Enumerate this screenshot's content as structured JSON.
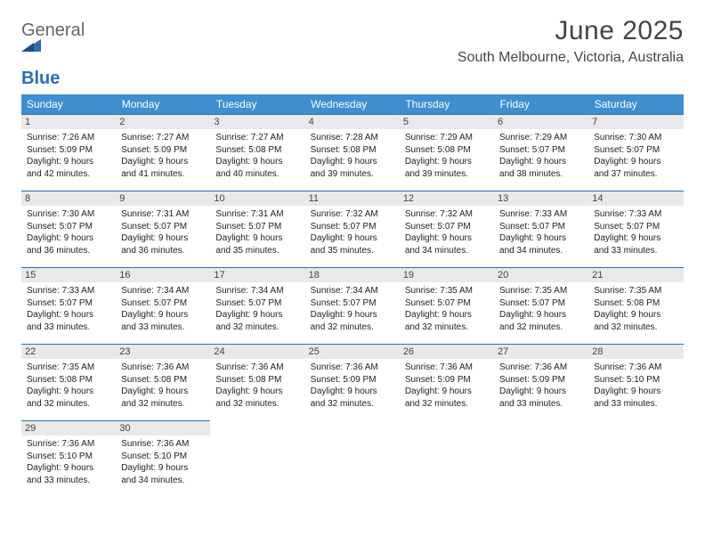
{
  "logo": {
    "textGray": "General",
    "textBlue": "Blue"
  },
  "title": "June 2025",
  "location": "South Melbourne, Victoria, Australia",
  "columns": [
    "Sunday",
    "Monday",
    "Tuesday",
    "Wednesday",
    "Thursday",
    "Friday",
    "Saturday"
  ],
  "colors": {
    "headerBg": "#3e8ed0",
    "headerText": "#ffffff",
    "ruleColor": "#2a6fb5",
    "dayBg": "#e9e9e9",
    "logoBlue": "#2a6fb5"
  },
  "weeks": [
    [
      {
        "day": "1",
        "sunrise": "7:26 AM",
        "sunset": "5:09 PM",
        "daylight": "9 hours and 42 minutes."
      },
      {
        "day": "2",
        "sunrise": "7:27 AM",
        "sunset": "5:09 PM",
        "daylight": "9 hours and 41 minutes."
      },
      {
        "day": "3",
        "sunrise": "7:27 AM",
        "sunset": "5:08 PM",
        "daylight": "9 hours and 40 minutes."
      },
      {
        "day": "4",
        "sunrise": "7:28 AM",
        "sunset": "5:08 PM",
        "daylight": "9 hours and 39 minutes."
      },
      {
        "day": "5",
        "sunrise": "7:29 AM",
        "sunset": "5:08 PM",
        "daylight": "9 hours and 39 minutes."
      },
      {
        "day": "6",
        "sunrise": "7:29 AM",
        "sunset": "5:07 PM",
        "daylight": "9 hours and 38 minutes."
      },
      {
        "day": "7",
        "sunrise": "7:30 AM",
        "sunset": "5:07 PM",
        "daylight": "9 hours and 37 minutes."
      }
    ],
    [
      {
        "day": "8",
        "sunrise": "7:30 AM",
        "sunset": "5:07 PM",
        "daylight": "9 hours and 36 minutes."
      },
      {
        "day": "9",
        "sunrise": "7:31 AM",
        "sunset": "5:07 PM",
        "daylight": "9 hours and 36 minutes."
      },
      {
        "day": "10",
        "sunrise": "7:31 AM",
        "sunset": "5:07 PM",
        "daylight": "9 hours and 35 minutes."
      },
      {
        "day": "11",
        "sunrise": "7:32 AM",
        "sunset": "5:07 PM",
        "daylight": "9 hours and 35 minutes."
      },
      {
        "day": "12",
        "sunrise": "7:32 AM",
        "sunset": "5:07 PM",
        "daylight": "9 hours and 34 minutes."
      },
      {
        "day": "13",
        "sunrise": "7:33 AM",
        "sunset": "5:07 PM",
        "daylight": "9 hours and 34 minutes."
      },
      {
        "day": "14",
        "sunrise": "7:33 AM",
        "sunset": "5:07 PM",
        "daylight": "9 hours and 33 minutes."
      }
    ],
    [
      {
        "day": "15",
        "sunrise": "7:33 AM",
        "sunset": "5:07 PM",
        "daylight": "9 hours and 33 minutes."
      },
      {
        "day": "16",
        "sunrise": "7:34 AM",
        "sunset": "5:07 PM",
        "daylight": "9 hours and 33 minutes."
      },
      {
        "day": "17",
        "sunrise": "7:34 AM",
        "sunset": "5:07 PM",
        "daylight": "9 hours and 32 minutes."
      },
      {
        "day": "18",
        "sunrise": "7:34 AM",
        "sunset": "5:07 PM",
        "daylight": "9 hours and 32 minutes."
      },
      {
        "day": "19",
        "sunrise": "7:35 AM",
        "sunset": "5:07 PM",
        "daylight": "9 hours and 32 minutes."
      },
      {
        "day": "20",
        "sunrise": "7:35 AM",
        "sunset": "5:07 PM",
        "daylight": "9 hours and 32 minutes."
      },
      {
        "day": "21",
        "sunrise": "7:35 AM",
        "sunset": "5:08 PM",
        "daylight": "9 hours and 32 minutes."
      }
    ],
    [
      {
        "day": "22",
        "sunrise": "7:35 AM",
        "sunset": "5:08 PM",
        "daylight": "9 hours and 32 minutes."
      },
      {
        "day": "23",
        "sunrise": "7:36 AM",
        "sunset": "5:08 PM",
        "daylight": "9 hours and 32 minutes."
      },
      {
        "day": "24",
        "sunrise": "7:36 AM",
        "sunset": "5:08 PM",
        "daylight": "9 hours and 32 minutes."
      },
      {
        "day": "25",
        "sunrise": "7:36 AM",
        "sunset": "5:09 PM",
        "daylight": "9 hours and 32 minutes."
      },
      {
        "day": "26",
        "sunrise": "7:36 AM",
        "sunset": "5:09 PM",
        "daylight": "9 hours and 32 minutes."
      },
      {
        "day": "27",
        "sunrise": "7:36 AM",
        "sunset": "5:09 PM",
        "daylight": "9 hours and 33 minutes."
      },
      {
        "day": "28",
        "sunrise": "7:36 AM",
        "sunset": "5:10 PM",
        "daylight": "9 hours and 33 minutes."
      }
    ],
    [
      {
        "day": "29",
        "sunrise": "7:36 AM",
        "sunset": "5:10 PM",
        "daylight": "9 hours and 33 minutes."
      },
      {
        "day": "30",
        "sunrise": "7:36 AM",
        "sunset": "5:10 PM",
        "daylight": "9 hours and 34 minutes."
      },
      null,
      null,
      null,
      null,
      null
    ]
  ],
  "labels": {
    "sunrise": "Sunrise:",
    "sunset": "Sunset:",
    "daylight": "Daylight:"
  }
}
